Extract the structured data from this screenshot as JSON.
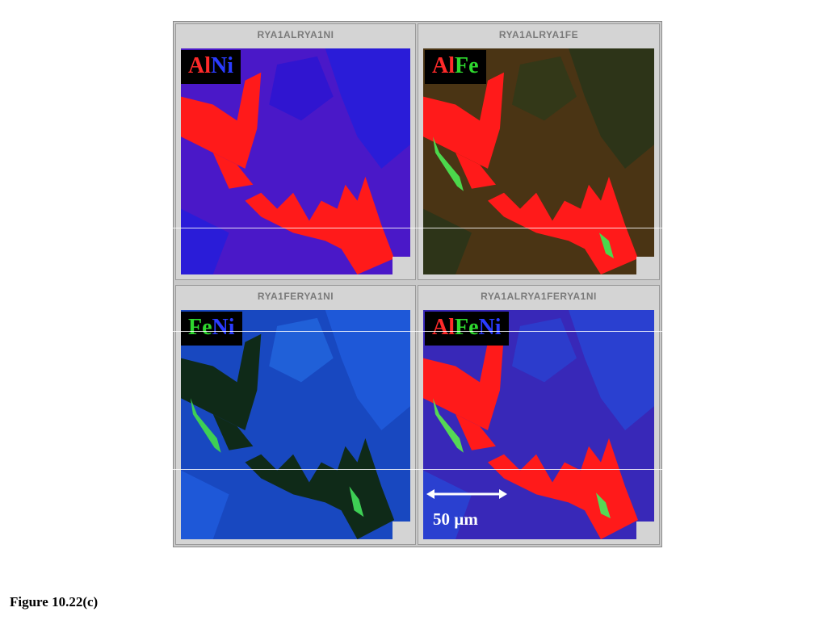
{
  "panels": [
    {
      "title": "RYA1ALRYA1NI",
      "tag": [
        {
          "text": "Al",
          "color": "al"
        },
        {
          "text": "Ni",
          "color": "ni"
        }
      ]
    },
    {
      "title": "RYA1ALRYA1FE",
      "tag": [
        {
          "text": "Al",
          "color": "al"
        },
        {
          "text": "Fe",
          "color": "fe"
        }
      ]
    },
    {
      "title": "RYA1FERYA1NI",
      "tag": [
        {
          "text": "Fe",
          "color": "fe"
        },
        {
          "text": "Ni",
          "color": "ni"
        }
      ]
    },
    {
      "title": "RYA1ALRYA1FERYA1NI",
      "tag": [
        {
          "text": "Al",
          "color": "al"
        },
        {
          "text": "Fe",
          "color": "fe"
        },
        {
          "text": "Ni",
          "color": "ni"
        }
      ]
    }
  ],
  "scale_bar": "50 µm",
  "caption": "Figure 10.22(c)",
  "colors": {
    "al": "#ff2a2a",
    "ni": "#2a3cff",
    "fe": "#2ed82e"
  }
}
